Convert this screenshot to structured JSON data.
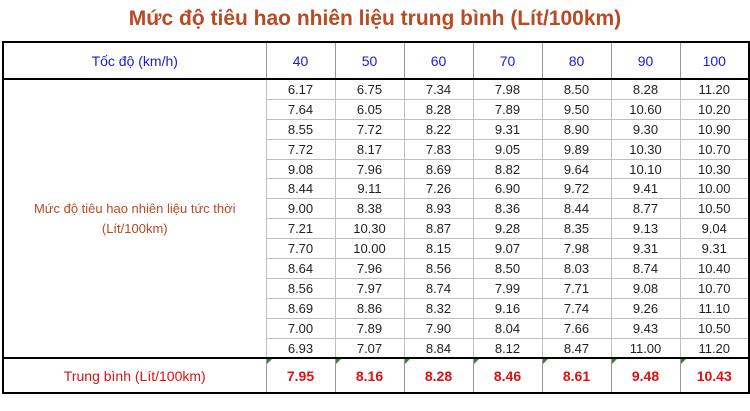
{
  "title": "Mức độ tiêu hao nhiên liệu trung bình (Lít/100km)",
  "header": {
    "speed_label": "Tốc độ (km/h)",
    "speeds": [
      "40",
      "50",
      "60",
      "70",
      "80",
      "90",
      "100"
    ]
  },
  "row_label_line1": "Mức độ tiêu hao nhiên liệu tức thời",
  "row_label_line2": "(Lít/100km)",
  "rows": [
    [
      "6.17",
      "6.75",
      "7.34",
      "7.98",
      "8.50",
      "8.28",
      "11.20"
    ],
    [
      "7.64",
      "6.05",
      "8.28",
      "7.89",
      "9.50",
      "10.60",
      "10.20"
    ],
    [
      "8.55",
      "7.72",
      "8.22",
      "9.31",
      "8.90",
      "9.30",
      "10.90"
    ],
    [
      "7.72",
      "8.17",
      "7.83",
      "9.05",
      "9.89",
      "10.30",
      "10.70"
    ],
    [
      "9.08",
      "7.96",
      "8.69",
      "8.82",
      "9.64",
      "10.10",
      "10.30"
    ],
    [
      "8.44",
      "9.11",
      "7.26",
      "6.90",
      "9.72",
      "9.41",
      "10.00"
    ],
    [
      "9.00",
      "8.38",
      "8.93",
      "8.36",
      "8.44",
      "8.77",
      "10.50"
    ],
    [
      "7.21",
      "10.30",
      "8.87",
      "9.28",
      "8.35",
      "9.13",
      "9.04"
    ],
    [
      "7.70",
      "10.00",
      "8.15",
      "9.07",
      "7.98",
      "9.31",
      "9.31"
    ],
    [
      "8.64",
      "7.96",
      "8.56",
      "8.50",
      "8.03",
      "8.74",
      "10.40"
    ],
    [
      "8.56",
      "7.97",
      "8.74",
      "7.99",
      "7.71",
      "9.08",
      "10.70"
    ],
    [
      "8.69",
      "8.86",
      "8.32",
      "9.16",
      "7.74",
      "9.26",
      "11.10"
    ],
    [
      "7.00",
      "7.89",
      "7.90",
      "8.04",
      "7.66",
      "9.43",
      "10.50"
    ],
    [
      "6.93",
      "7.07",
      "8.84",
      "8.12",
      "8.47",
      "11.00",
      "11.20"
    ]
  ],
  "average": {
    "label": "Trung bình (Lít/100km)",
    "values": [
      "7.95",
      "8.16",
      "8.28",
      "8.46",
      "8.61",
      "9.48",
      "10.43"
    ]
  },
  "colors": {
    "title": "#b84a24",
    "header_text": "#1a1ae0",
    "average_text": "#e01010",
    "cell_marker": "#2e8b2e"
  }
}
